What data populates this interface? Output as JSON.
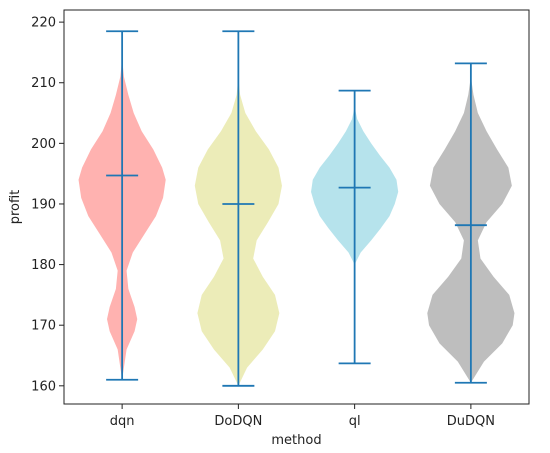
{
  "chart_data": {
    "type": "violin",
    "title": "",
    "xlabel": "method",
    "ylabel": "profit",
    "ylim": [
      157,
      222
    ],
    "yticks": [
      160,
      170,
      180,
      190,
      200,
      210,
      220
    ],
    "grid": false,
    "categories": [
      "dqn",
      "DoDQN",
      "ql",
      "DuDQN"
    ],
    "stats_color": "#1f77b4",
    "series": [
      {
        "category": "dqn",
        "color": "#ff9896",
        "min": 161,
        "max": 218.5,
        "mean": 194.7,
        "density": [
          [
            161,
            0.0
          ],
          [
            166,
            0.05
          ],
          [
            169,
            0.14
          ],
          [
            171,
            0.17
          ],
          [
            173,
            0.14
          ],
          [
            176,
            0.07
          ],
          [
            179,
            0.05
          ],
          [
            182,
            0.12
          ],
          [
            185,
            0.25
          ],
          [
            188,
            0.38
          ],
          [
            191,
            0.46
          ],
          [
            194,
            0.49
          ],
          [
            196,
            0.45
          ],
          [
            199,
            0.35
          ],
          [
            202,
            0.22
          ],
          [
            205,
            0.13
          ],
          [
            208,
            0.07
          ],
          [
            211,
            0.02
          ],
          [
            214,
            0.0
          ]
        ]
      },
      {
        "category": "DoDQN",
        "color": "#e6e6a0",
        "min": 160,
        "max": 218.5,
        "mean": 190,
        "density": [
          [
            160,
            0.0
          ],
          [
            163,
            0.1
          ],
          [
            166,
            0.28
          ],
          [
            169,
            0.42
          ],
          [
            172,
            0.47
          ],
          [
            175,
            0.42
          ],
          [
            178,
            0.28
          ],
          [
            181,
            0.17
          ],
          [
            184,
            0.21
          ],
          [
            187,
            0.34
          ],
          [
            190,
            0.46
          ],
          [
            193,
            0.5
          ],
          [
            196,
            0.46
          ],
          [
            199,
            0.35
          ],
          [
            202,
            0.2
          ],
          [
            205,
            0.08
          ],
          [
            208,
            0.02
          ],
          [
            211,
            0.0
          ]
        ]
      },
      {
        "category": "ql",
        "color": "#9edae5",
        "min": 163.7,
        "max": 208.7,
        "mean": 192.7,
        "density": [
          [
            180,
            0.0
          ],
          [
            182,
            0.07
          ],
          [
            184,
            0.19
          ],
          [
            186,
            0.3
          ],
          [
            188,
            0.4
          ],
          [
            190,
            0.46
          ],
          [
            192,
            0.5
          ],
          [
            194,
            0.48
          ],
          [
            196,
            0.4
          ],
          [
            198,
            0.29
          ],
          [
            200,
            0.19
          ],
          [
            202,
            0.1
          ],
          [
            204,
            0.03
          ],
          [
            206,
            0.0
          ]
        ]
      },
      {
        "category": "DuDQN",
        "color": "#a8a8a8",
        "min": 160.5,
        "max": 213.2,
        "mean": 186.5,
        "density": [
          [
            160.5,
            0.0
          ],
          [
            164,
            0.15
          ],
          [
            167,
            0.36
          ],
          [
            170,
            0.48
          ],
          [
            172,
            0.5
          ],
          [
            175,
            0.44
          ],
          [
            178,
            0.26
          ],
          [
            181,
            0.11
          ],
          [
            184,
            0.08
          ],
          [
            187,
            0.18
          ],
          [
            190,
            0.36
          ],
          [
            193,
            0.47
          ],
          [
            196,
            0.43
          ],
          [
            199,
            0.3
          ],
          [
            202,
            0.18
          ],
          [
            205,
            0.08
          ],
          [
            208,
            0.03
          ],
          [
            211,
            0.0
          ]
        ]
      }
    ]
  }
}
